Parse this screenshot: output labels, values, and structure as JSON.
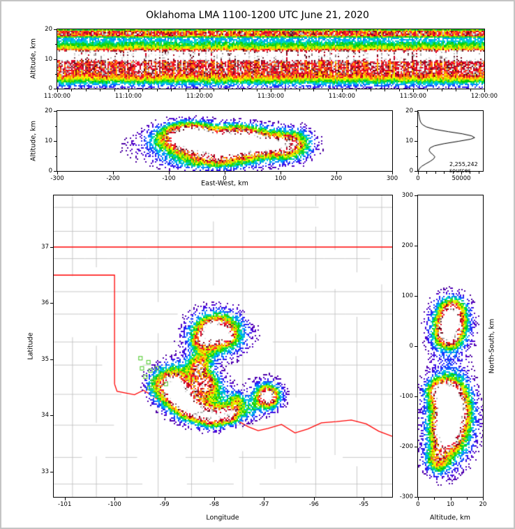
{
  "title": "Oklahoma LMA 1100-1200 UTC June 21, 2020",
  "annotations": {
    "source_count": "2,255,242 sources"
  },
  "colors": {
    "background": "#ffffff",
    "frame_border": "#c4c4c4",
    "axis": "#000000",
    "county_line": "#bbbbbb",
    "state_border": "#ff0000",
    "station_marker": "#55cc33",
    "histogram_line": "#000000"
  },
  "colormap": [
    [
      0.0,
      "#40006a"
    ],
    [
      0.1,
      "#5500cc"
    ],
    [
      0.18,
      "#2222ff"
    ],
    [
      0.28,
      "#0099ff"
    ],
    [
      0.36,
      "#00e0d0"
    ],
    [
      0.46,
      "#00cc00"
    ],
    [
      0.56,
      "#aaee00"
    ],
    [
      0.64,
      "#ffff00"
    ],
    [
      0.73,
      "#ff9900"
    ],
    [
      0.81,
      "#ff1133"
    ],
    [
      0.875,
      "#cc0022"
    ],
    [
      0.91,
      "#550010"
    ],
    [
      0.945,
      "#aaaaaa"
    ],
    [
      1.0,
      "#ffffff"
    ]
  ],
  "chart_data": [
    {
      "id": "time_height",
      "type": "scatter-density-profile",
      "xlabel": "",
      "ylabel": "Altitude, km",
      "xlim": [
        0,
        3600
      ],
      "ylim": [
        0,
        20
      ],
      "xtick_vals": [
        0,
        600,
        1200,
        1800,
        2400,
        3000,
        3600
      ],
      "xtick_labels": [
        "11:00:00",
        "11:10:00",
        "11:20:00",
        "11:30:00",
        "11:40:00",
        "11:50:00",
        "12:00:00"
      ],
      "xtick_minor_step": 120,
      "ytick_vals": [
        0,
        10,
        20
      ],
      "ytick_minor_vals": [
        5,
        15
      ],
      "profile": [
        [
          0,
          0.1
        ],
        [
          0.8,
          0.2
        ],
        [
          1.6,
          0.32
        ],
        [
          2.4,
          0.46
        ],
        [
          3.2,
          0.62
        ],
        [
          4.0,
          0.76
        ],
        [
          5.0,
          0.84
        ],
        [
          5.6,
          0.88
        ],
        [
          9.0,
          0.88
        ],
        [
          9.6,
          1.02
        ],
        [
          10.0,
          1.16
        ],
        [
          12.4,
          1.16
        ],
        [
          13.0,
          0.82
        ],
        [
          13.6,
          0.64
        ],
        [
          14.5,
          0.5
        ],
        [
          15.5,
          0.4
        ],
        [
          16.5,
          0.3
        ],
        [
          17.2,
          0.32
        ],
        [
          17.7,
          0.72
        ],
        [
          18.1,
          0.86
        ],
        [
          19.2,
          0.84
        ],
        [
          19.7,
          0.55
        ],
        [
          20,
          0.3
        ]
      ]
    },
    {
      "id": "ew_cross_section",
      "type": "scatter-density-blobs",
      "xlabel": "East-West, km",
      "ylabel": "Altitude, km",
      "xlim": [
        -300,
        300
      ],
      "ylim": [
        0,
        20
      ],
      "xtick_vals": [
        -300,
        -200,
        -100,
        0,
        100,
        200,
        300
      ],
      "ytick_vals": [
        0,
        10,
        20
      ],
      "ytick_minor_vals": [
        5,
        15
      ],
      "blobs": [
        [
          -70,
          10.8,
          45,
          3.8,
          1.15
        ],
        [
          -30,
          9.0,
          40,
          3.5,
          0.85
        ],
        [
          20,
          9.2,
          45,
          4.0,
          1.05
        ],
        [
          60,
          9.0,
          35,
          3.5,
          0.7
        ],
        [
          100,
          8.5,
          30,
          4.0,
          0.8
        ],
        [
          -10,
          8.5,
          120,
          5.5,
          0.45
        ],
        [
          -20,
          3.5,
          70,
          2.8,
          0.5
        ],
        [
          -60,
          14.2,
          40,
          2.5,
          0.45
        ],
        [
          30,
          13.8,
          35,
          2.2,
          0.35
        ],
        [
          130,
          9.0,
          25,
          4.5,
          0.5
        ]
      ]
    },
    {
      "id": "altitude_histogram",
      "type": "line",
      "xlabel": "",
      "ylabel": "",
      "annotation": "2,255,242 sources",
      "xlim": [
        0,
        75000
      ],
      "ylim": [
        0,
        20
      ],
      "xtick_vals": [
        0,
        50000
      ],
      "xtick_labels": [
        "0",
        "50000"
      ],
      "xtick_minor_vals": [
        10000,
        20000,
        30000,
        40000,
        60000,
        70000
      ],
      "ytick_vals": [
        0,
        10,
        20
      ],
      "ytick_minor_vals": [
        5,
        15
      ],
      "points_count_alt": [
        [
          300,
          0
        ],
        [
          1500,
          0.8
        ],
        [
          4500,
          1.6
        ],
        [
          9000,
          2.4
        ],
        [
          14000,
          3.2
        ],
        [
          18000,
          4.0
        ],
        [
          19500,
          4.7
        ],
        [
          17500,
          5.4
        ],
        [
          14500,
          6.1
        ],
        [
          12800,
          6.9
        ],
        [
          14000,
          7.7
        ],
        [
          19000,
          8.4
        ],
        [
          30000,
          9.1
        ],
        [
          47000,
          9.9
        ],
        [
          61000,
          10.6
        ],
        [
          65500,
          11.1
        ],
        [
          62000,
          11.7
        ],
        [
          51000,
          12.4
        ],
        [
          35000,
          13.1
        ],
        [
          19000,
          13.9
        ],
        [
          9500,
          14.7
        ],
        [
          5000,
          15.5
        ],
        [
          3000,
          16.3
        ],
        [
          2000,
          17.2
        ],
        [
          1400,
          18.1
        ],
        [
          800,
          19.0
        ],
        [
          300,
          19.8
        ]
      ]
    },
    {
      "id": "plan_view",
      "type": "map-scatter-density",
      "xlabel": "Longitude",
      "ylabel": "Latitude",
      "xlim": [
        -101.22,
        -94.43
      ],
      "ylim": [
        32.55,
        37.92
      ],
      "xtick_vals": [
        -101,
        -100,
        -99,
        -98,
        -97,
        -96,
        -95
      ],
      "ytick_vals": [
        33,
        34,
        35,
        36,
        37
      ],
      "state_borders": [
        [
          [
            -101.22,
            37.0
          ],
          [
            -94.43,
            37.0
          ]
        ],
        [
          [
            -101.22,
            36.5
          ],
          [
            -100.0,
            36.5
          ],
          [
            -100.0,
            34.56
          ]
        ],
        [
          [
            -100.0,
            34.56
          ],
          [
            -99.95,
            34.43
          ],
          [
            -99.78,
            34.4
          ],
          [
            -99.6,
            34.37
          ],
          [
            -99.42,
            34.45
          ],
          [
            -99.22,
            34.34
          ],
          [
            -99.0,
            34.2
          ],
          [
            -98.75,
            34.13
          ],
          [
            -98.5,
            34.11
          ],
          [
            -98.35,
            34.06
          ],
          [
            -98.12,
            34.12
          ],
          [
            -97.95,
            33.99
          ],
          [
            -97.72,
            33.9
          ],
          [
            -97.52,
            33.9
          ],
          [
            -97.32,
            33.8
          ],
          [
            -97.12,
            33.73
          ],
          [
            -96.92,
            33.77
          ],
          [
            -96.65,
            33.84
          ],
          [
            -96.38,
            33.69
          ],
          [
            -96.12,
            33.76
          ],
          [
            -95.85,
            33.87
          ],
          [
            -95.55,
            33.89
          ],
          [
            -95.25,
            33.92
          ],
          [
            -94.95,
            33.85
          ],
          [
            -94.7,
            33.72
          ],
          [
            -94.43,
            33.63
          ]
        ]
      ],
      "stations": [
        [
          -99.48,
          35.02
        ],
        [
          -99.32,
          34.95
        ],
        [
          -99.45,
          34.84
        ],
        [
          -99.28,
          34.8
        ],
        [
          -99.15,
          34.84
        ],
        [
          -99.38,
          34.69
        ],
        [
          -99.22,
          34.62
        ],
        [
          -99.07,
          34.69
        ],
        [
          -98.97,
          34.56
        ],
        [
          -99.3,
          34.49
        ]
      ],
      "blobs": [
        [
          -97.95,
          35.48,
          0.38,
          0.27,
          1.15
        ],
        [
          -98.06,
          35.53,
          0.15,
          0.1,
          0.55
        ],
        [
          -97.72,
          35.4,
          0.12,
          0.09,
          0.45
        ],
        [
          -98.28,
          35.32,
          0.17,
          0.13,
          0.5
        ],
        [
          -97.95,
          35.45,
          0.6,
          0.42,
          0.33
        ],
        [
          -98.2,
          35.05,
          0.22,
          0.18,
          0.3
        ],
        [
          -98.85,
          34.52,
          0.28,
          0.3,
          1.2
        ],
        [
          -98.68,
          34.3,
          0.2,
          0.18,
          0.8
        ],
        [
          -98.45,
          34.1,
          0.26,
          0.17,
          0.95
        ],
        [
          -98.05,
          33.97,
          0.28,
          0.16,
          1.0
        ],
        [
          -97.68,
          34.02,
          0.2,
          0.15,
          0.9
        ],
        [
          -97.55,
          34.25,
          0.14,
          0.14,
          0.55
        ],
        [
          -98.18,
          34.58,
          0.24,
          0.2,
          0.75
        ],
        [
          -98.33,
          34.88,
          0.2,
          0.17,
          0.68
        ],
        [
          -98.55,
          34.45,
          0.4,
          0.38,
          0.45
        ],
        [
          -98.05,
          34.25,
          0.45,
          0.35,
          0.4
        ],
        [
          -96.93,
          34.33,
          0.19,
          0.16,
          1.05
        ],
        [
          -96.95,
          34.35,
          0.33,
          0.27,
          0.42
        ],
        [
          -97.3,
          34.1,
          0.2,
          0.18,
          0.32
        ],
        [
          -99.2,
          34.55,
          0.2,
          0.25,
          0.28
        ]
      ]
    },
    {
      "id": "ns_cross_section",
      "type": "scatter-density-blobs",
      "xlabel": "Altitude, km",
      "ylabel": "North-South, km",
      "xlim": [
        0,
        20
      ],
      "ylim": [
        -300,
        300
      ],
      "xtick_vals": [
        0,
        10,
        20
      ],
      "xtick_minor_vals": [
        5,
        15
      ],
      "ytick_vals": [
        300,
        200,
        100,
        0,
        -100,
        -200,
        -300
      ],
      "ytick_side": "left",
      "ylabel_side": "right",
      "blobs": [
        [
          10,
          45,
          4.0,
          30,
          1.2
        ],
        [
          9,
          15,
          3.5,
          18,
          0.6
        ],
        [
          11,
          75,
          3.5,
          20,
          0.5
        ],
        [
          10,
          -115,
          4.2,
          38,
          1.25
        ],
        [
          8.5,
          -170,
          4.0,
          35,
          1.15
        ],
        [
          7,
          -90,
          4.0,
          22,
          0.8
        ],
        [
          6,
          -225,
          3.5,
          25,
          0.65
        ],
        [
          12,
          -145,
          5.0,
          60,
          0.55
        ],
        [
          9,
          -140,
          6.5,
          90,
          0.45
        ],
        [
          10,
          40,
          6.0,
          55,
          0.4
        ]
      ]
    }
  ]
}
